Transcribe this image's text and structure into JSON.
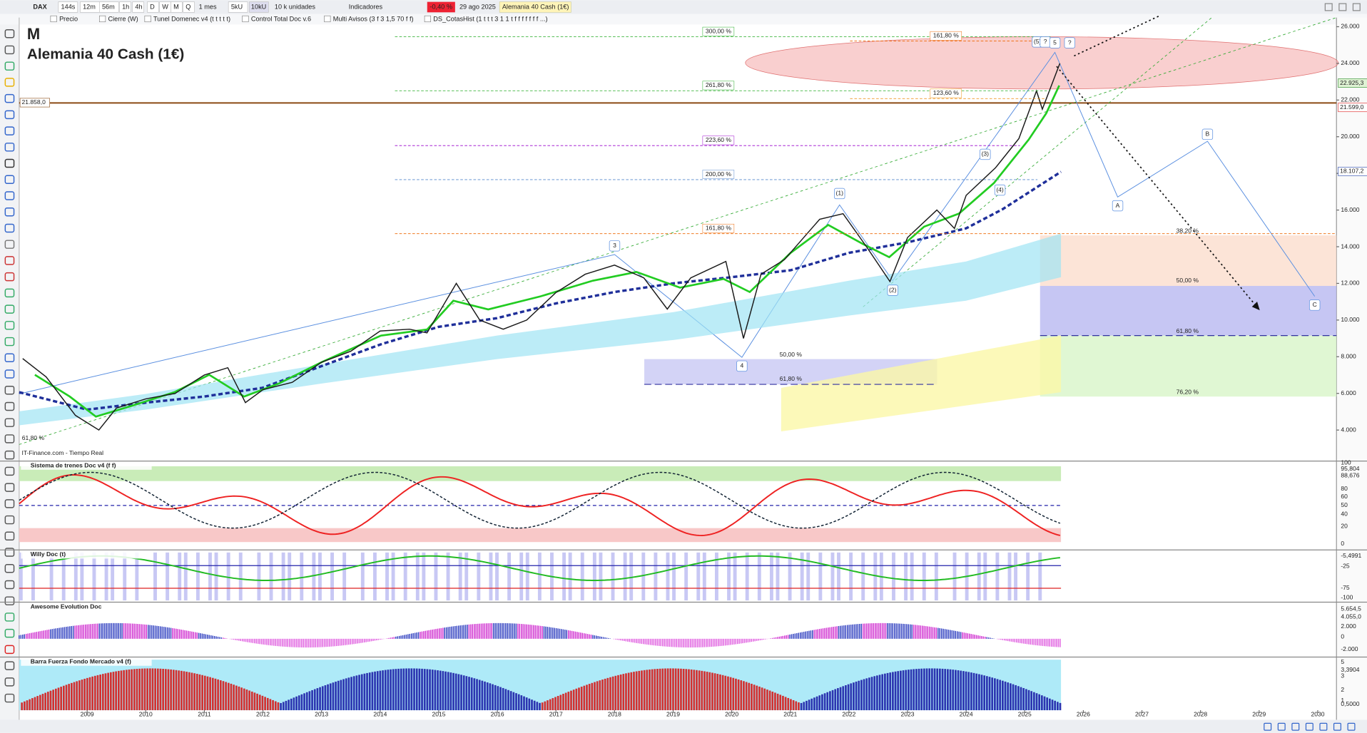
{
  "toolbar": {
    "symbol": "DAX",
    "timeframes": [
      "144s",
      "12m",
      "56m",
      "1h",
      "4h",
      "D",
      "W",
      "M",
      "Q"
    ],
    "period": "1 mes",
    "units": [
      "5kU",
      "10kU"
    ],
    "units_label": "10 k unidades",
    "indicators_button": "Indicadores",
    "change": "-0,40 %",
    "date": "29 ago 2025",
    "instrument": "Alemania 40 Cash (1€)"
  },
  "indicator_tabs": [
    "Precio",
    "Cierre (W)",
    "Tunel Domenec v4 (t t t t t)",
    "Control Total Doc v.6",
    "Multi Avisos (3 f 3 1,5 70 f f)",
    "DS_CotasHist (1 t t t 3 1 1 t f f f f f f f ...)"
  ],
  "chart": {
    "timeframe_label": "M",
    "title": "Alemania 40 Cash (1€)",
    "source": "IT-Finance.com - Tiempo Real",
    "xlim": [
      2007.84,
      2030.32
    ],
    "xticks": [
      2009,
      2010,
      2011,
      2012,
      2013,
      2014,
      2015,
      2016,
      2017,
      2018,
      2019,
      2020,
      2021,
      2022,
      2023,
      2024,
      2025,
      2026,
      2027,
      2028,
      2029,
      2030
    ],
    "ylim": [
      2500,
      26500
    ],
    "yticks": [
      {
        "value": 4000,
        "label": "4.000"
      },
      {
        "value": 6000,
        "label": "6.000"
      },
      {
        "value": 8000,
        "label": "8.000"
      },
      {
        "value": 10000,
        "label": "10.000"
      },
      {
        "value": 12000,
        "label": "12.000"
      },
      {
        "value": 14000,
        "label": "14.000"
      },
      {
        "value": 16000,
        "label": "16.000"
      },
      {
        "value": 18000,
        "label": "18.000"
      },
      {
        "value": 20000,
        "label": "20.000"
      },
      {
        "value": 22000,
        "label": "22.000"
      },
      {
        "value": 24000,
        "label": "24.000"
      },
      {
        "value": 26000,
        "label": "26.000"
      }
    ],
    "price": {
      "color": "#1a1a1a",
      "x": [
        2007.9,
        2008.3,
        2008.8,
        2009.2,
        2009.5,
        2010.0,
        2010.5,
        2011.0,
        2011.4,
        2011.7,
        2012.0,
        2012.5,
        2013.0,
        2013.5,
        2014.0,
        2014.5,
        2014.8,
        2015.3,
        2015.7,
        2016.1,
        2016.5,
        2017.0,
        2017.5,
        2018.0,
        2018.5,
        2018.9,
        2019.3,
        2019.9,
        2020.2,
        2020.5,
        2020.9,
        2021.5,
        2021.9,
        2022.3,
        2022.7,
        2023.0,
        2023.5,
        2023.8,
        2024.0,
        2024.5,
        2024.9,
        2025.2,
        2025.3,
        2025.6
      ],
      "values": [
        7900,
        6900,
        4800,
        4000,
        5200,
        5700,
        6000,
        7000,
        7400,
        5500,
        6200,
        6600,
        7700,
        8300,
        9400,
        9500,
        9300,
        12000,
        10000,
        9500,
        10000,
        11500,
        12500,
        13000,
        12300,
        10600,
        12300,
        13200,
        9000,
        12500,
        13300,
        15500,
        15800,
        14000,
        12100,
        14500,
        16000,
        15000,
        16800,
        18300,
        19900,
        22500,
        21500,
        24000
      ]
    },
    "price_tags": [
      {
        "value": 22925.3,
        "label": "22.925,3"
      },
      {
        "value": 21599.0,
        "label": "21.599,0"
      },
      {
        "value": 18107.2,
        "label": "18.107,2"
      },
      {
        "value": 21858.0,
        "label": "21.858,0"
      }
    ],
    "fib_labels": [
      "300,00 %",
      "261,80 %",
      "223,60 %",
      "200,00 %",
      "161,80 %",
      "161,80 %",
      "123,60 %",
      "50,00 %",
      "61,80 %",
      "38,20 %",
      "50,00 %",
      "61,80 %",
      "76,20 %",
      "61,80 %"
    ],
    "wave_labels": [
      "3",
      "4",
      "(1)",
      "(2)",
      "(3)",
      "(4)",
      "(5)",
      "?",
      "5",
      "?",
      "A",
      "B",
      "C"
    ]
  },
  "panels": [
    {
      "title": "Sistema de trenes Doc v4 (f f)",
      "scale": [
        "100",
        "95,804",
        "88,676",
        "80",
        "60",
        "50",
        "40",
        "20",
        "0"
      ]
    },
    {
      "title": "Willy Doc (t)",
      "scale": [
        "-5,4991",
        "-25",
        "-75",
        "-100"
      ]
    },
    {
      "title": "Awesome Evolution Doc",
      "scale": [
        "5.654,5",
        "4.055,0",
        "2.000",
        "0",
        "-2.000"
      ]
    },
    {
      "title": "Barra Fuerza Fondo Mercado v4 (f)",
      "scale": [
        "5",
        "3,3904",
        "3",
        "2",
        "1",
        "0,5000"
      ]
    }
  ]
}
